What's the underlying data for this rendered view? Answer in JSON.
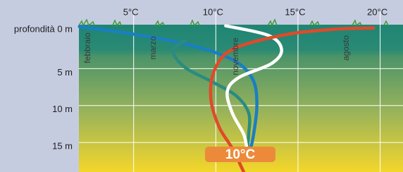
{
  "chart_data": {
    "type": "line",
    "xlim": [
      1.67,
      21.39
    ],
    "xticks": [
      {
        "value": 5,
        "label": "5°C"
      },
      {
        "value": 10,
        "label": "10°C"
      },
      {
        "value": 15,
        "label": "15°C"
      },
      {
        "value": 20,
        "label": "20°C"
      }
    ],
    "ylim": [
      19,
      -1
    ],
    "yticks": [
      {
        "value": 0,
        "label": "profondità 0 m"
      },
      {
        "value": 5,
        "label": "5 m"
      },
      {
        "value": 10,
        "label": "10 m"
      },
      {
        "value": 15,
        "label": "15 m"
      }
    ],
    "grid": true,
    "series": [
      {
        "name": "febbraio",
        "color": "#1a7fc1",
        "x": [
          1.7,
          4.6,
          7.2,
          9.7,
          11.4,
          12.3,
          12.5,
          12.3,
          12.1
        ],
        "values": [
          -0.7,
          0.2,
          1.2,
          2.6,
          4.3,
          6.7,
          10.0,
          13.9,
          16.0
        ]
      },
      {
        "name": "marzo",
        "color": "#2a8c80",
        "x": [
          8.1,
          7.4,
          8.1,
          9.7,
          11.2,
          12.0,
          12.0,
          11.9
        ],
        "values": [
          1.2,
          2.6,
          4.8,
          6.7,
          8.6,
          11.0,
          13.9,
          16.0
        ]
      },
      {
        "name": "novembre",
        "color": "#ffffff",
        "x": [
          10.6,
          13.2,
          14.0,
          13.4,
          11.4,
          10.7,
          11.0,
          11.7,
          11.9
        ],
        "values": [
          -0.8,
          0.5,
          2.4,
          4.3,
          6.2,
          8.1,
          11.0,
          13.9,
          16.0
        ]
      },
      {
        "name": "agosto",
        "color": "#e04a2a",
        "x": [
          19.6,
          17.0,
          14.0,
          11.0,
          9.9,
          9.7,
          10.2,
          11.0,
          11.7
        ],
        "values": [
          -0.5,
          -0.3,
          0.5,
          2.4,
          5.3,
          9.1,
          12.9,
          15.8,
          19.0
        ]
      }
    ],
    "badge": "10°C"
  }
}
